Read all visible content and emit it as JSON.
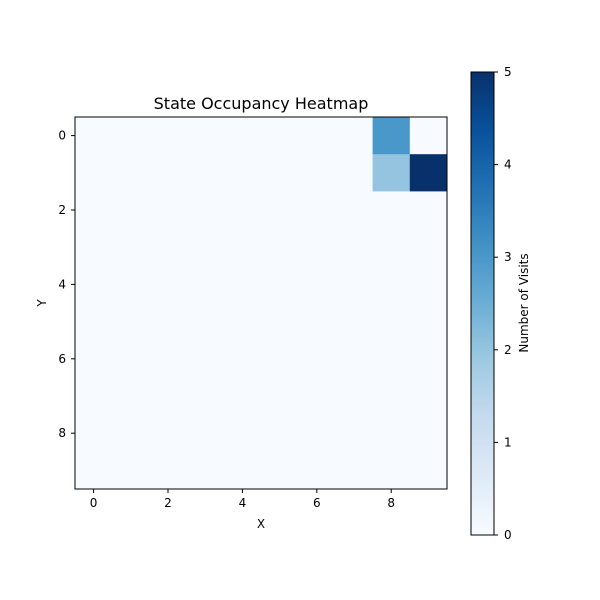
{
  "chart_data": {
    "type": "heatmap",
    "title": "State Occupancy Heatmap",
    "xlabel": "X",
    "ylabel": "Y",
    "x_ticks": [
      "0",
      "2",
      "4",
      "6",
      "8"
    ],
    "y_ticks": [
      "0",
      "2",
      "4",
      "6",
      "8"
    ],
    "xlim": [
      -0.5,
      9.5
    ],
    "ylim": [
      9.5,
      -0.5
    ],
    "grid": false,
    "colormap": "Blues",
    "colorbar": {
      "label": "Number of Visits",
      "range": [
        0,
        5
      ],
      "ticks": [
        "0",
        "1",
        "2",
        "3",
        "4",
        "5"
      ]
    },
    "values": [
      [
        0,
        0,
        0,
        0,
        0,
        0,
        0,
        0,
        3,
        0
      ],
      [
        0,
        0,
        0,
        0,
        0,
        0,
        0,
        0,
        2,
        5
      ],
      [
        0,
        0,
        0,
        0,
        0,
        0,
        0,
        0,
        0,
        0
      ],
      [
        0,
        0,
        0,
        0,
        0,
        0,
        0,
        0,
        0,
        0
      ],
      [
        0,
        0,
        0,
        0,
        0,
        0,
        0,
        0,
        0,
        0
      ],
      [
        0,
        0,
        0,
        0,
        0,
        0,
        0,
        0,
        0,
        0
      ],
      [
        0,
        0,
        0,
        0,
        0,
        0,
        0,
        0,
        0,
        0
      ],
      [
        0,
        0,
        0,
        0,
        0,
        0,
        0,
        0,
        0,
        0
      ],
      [
        0,
        0,
        0,
        0,
        0,
        0,
        0,
        0,
        0,
        0
      ],
      [
        0,
        0,
        0,
        0,
        0,
        0,
        0,
        0,
        0,
        0
      ]
    ]
  }
}
